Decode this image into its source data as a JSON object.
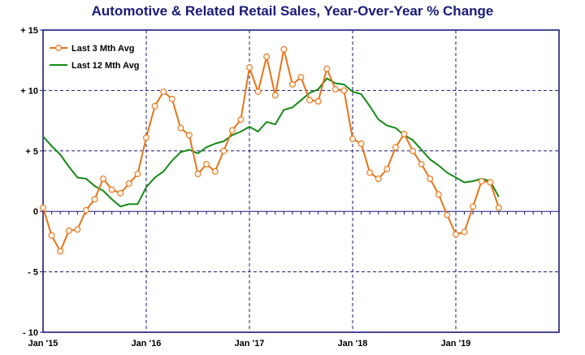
{
  "chart_data": {
    "type": "line",
    "title": "Automotive & Related Retail Sales, Year-Over-Year % Change",
    "xlabel": "",
    "ylabel": "",
    "ylim": [
      -10,
      15
    ],
    "y_ticks": [
      {
        "value": 15,
        "label": "+ 15"
      },
      {
        "value": 10,
        "label": "+ 10"
      },
      {
        "value": 5,
        "label": "+ 5"
      },
      {
        "value": 0,
        "label": "0"
      },
      {
        "value": -5,
        "label": "- 5"
      },
      {
        "value": -10,
        "label": "- 10"
      }
    ],
    "x_ticks": [
      {
        "date": "2015-01",
        "label": "Jan '15"
      },
      {
        "date": "2016-01",
        "label": "Jan '16"
      },
      {
        "date": "2017-01",
        "label": "Jan '17"
      },
      {
        "date": "2018-01",
        "label": "Jan '18"
      },
      {
        "date": "2019-01",
        "label": "Jan '19"
      }
    ],
    "xlim": [
      "2015-01",
      "2020-01"
    ],
    "grid": true,
    "legend_position": "top-left",
    "series": [
      {
        "name": "Last 3 Mth Avg",
        "color": "#e8741a",
        "marker": "circle",
        "x": [
          "2015-01",
          "2015-02",
          "2015-03",
          "2015-04",
          "2015-05",
          "2015-06",
          "2015-07",
          "2015-08",
          "2015-09",
          "2015-10",
          "2015-11",
          "2015-12",
          "2016-01",
          "2016-02",
          "2016-03",
          "2016-04",
          "2016-05",
          "2016-06",
          "2016-07",
          "2016-08",
          "2016-09",
          "2016-10",
          "2016-11",
          "2016-12",
          "2017-01",
          "2017-02",
          "2017-03",
          "2017-04",
          "2017-05",
          "2017-06",
          "2017-07",
          "2017-08",
          "2017-09",
          "2017-10",
          "2017-11",
          "2017-12",
          "2018-01",
          "2018-02",
          "2018-03",
          "2018-04",
          "2018-05",
          "2018-06",
          "2018-07",
          "2018-08",
          "2018-09",
          "2018-10",
          "2018-11",
          "2018-12",
          "2019-01",
          "2019-02",
          "2019-03",
          "2019-04",
          "2019-05",
          "2019-06"
        ],
        "values": [
          0.3,
          -2.0,
          -3.3,
          -1.6,
          -1.5,
          0.1,
          1.0,
          2.7,
          1.8,
          1.5,
          2.3,
          3.1,
          6.1,
          8.7,
          9.9,
          9.3,
          6.9,
          6.3,
          3.1,
          3.9,
          3.3,
          5.0,
          6.7,
          7.6,
          11.9,
          9.9,
          12.8,
          9.6,
          13.4,
          10.5,
          11.1,
          9.2,
          9.1,
          11.8,
          10.1,
          10.0,
          6.0,
          5.6,
          3.2,
          2.7,
          3.5,
          5.3,
          6.4,
          5.0,
          3.9,
          2.7,
          1.4,
          -0.3,
          -1.9,
          -1.7,
          0.4,
          2.5,
          2.4,
          0.3
        ]
      },
      {
        "name": "Last 12 Mth Avg",
        "color": "#178a17",
        "marker": "none",
        "x": [
          "2015-01",
          "2015-02",
          "2015-03",
          "2015-04",
          "2015-05",
          "2015-06",
          "2015-07",
          "2015-08",
          "2015-09",
          "2015-10",
          "2015-11",
          "2015-12",
          "2016-01",
          "2016-02",
          "2016-03",
          "2016-04",
          "2016-05",
          "2016-06",
          "2016-07",
          "2016-08",
          "2016-09",
          "2016-10",
          "2016-11",
          "2016-12",
          "2017-01",
          "2017-02",
          "2017-03",
          "2017-04",
          "2017-05",
          "2017-06",
          "2017-07",
          "2017-08",
          "2017-09",
          "2017-10",
          "2017-11",
          "2017-12",
          "2018-01",
          "2018-02",
          "2018-03",
          "2018-04",
          "2018-05",
          "2018-06",
          "2018-07",
          "2018-08",
          "2018-09",
          "2018-10",
          "2018-11",
          "2018-12",
          "2019-01",
          "2019-02",
          "2019-03",
          "2019-04",
          "2019-05",
          "2019-06"
        ],
        "values": [
          6.2,
          5.4,
          4.7,
          3.7,
          2.8,
          2.7,
          2.1,
          1.7,
          1.0,
          0.4,
          0.6,
          0.6,
          2.0,
          2.8,
          3.3,
          4.2,
          4.9,
          5.1,
          4.8,
          5.3,
          5.6,
          5.8,
          6.3,
          6.6,
          7.0,
          6.6,
          7.4,
          7.2,
          8.4,
          8.6,
          9.2,
          9.8,
          10.1,
          11.0,
          10.6,
          10.5,
          9.9,
          9.7,
          8.7,
          7.6,
          7.1,
          6.9,
          6.3,
          5.9,
          5.1,
          4.3,
          3.8,
          3.2,
          2.8,
          2.4,
          2.5,
          2.7,
          2.5,
          1.2
        ]
      }
    ]
  }
}
